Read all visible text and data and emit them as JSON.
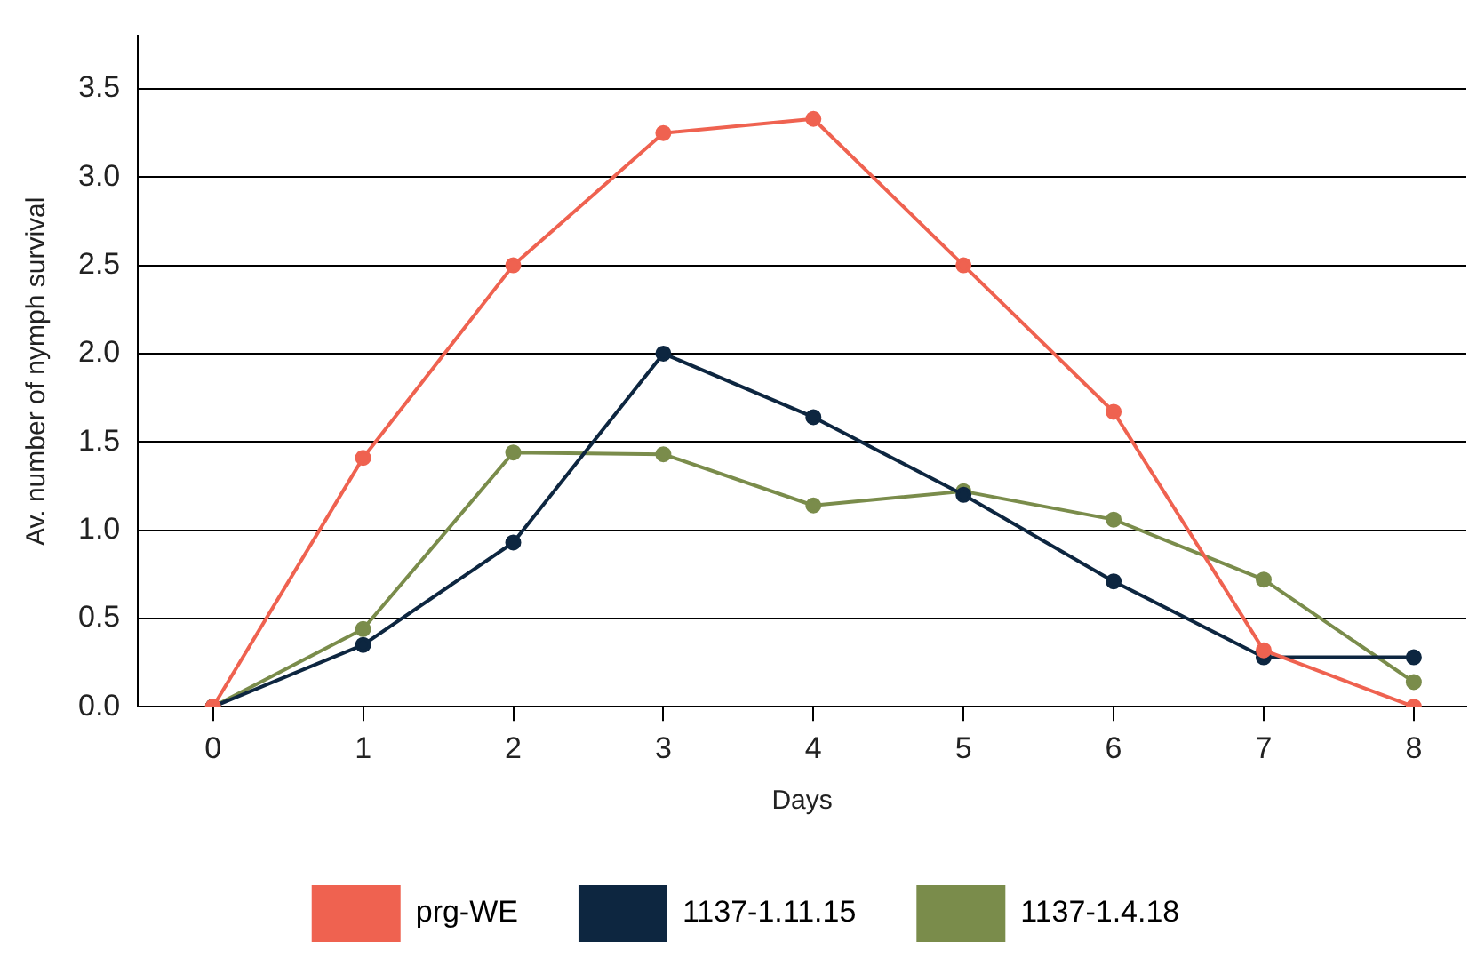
{
  "chart_data": {
    "type": "line",
    "xlabel": "Days",
    "ylabel": "Av. number of nymph survival",
    "x": [
      0,
      1,
      2,
      3,
      4,
      5,
      6,
      7,
      8
    ],
    "xlim": [
      -0.5,
      8.35
    ],
    "xticks": [
      0,
      1,
      2,
      3,
      4,
      5,
      6,
      7,
      8
    ],
    "ylim": [
      0,
      3.8
    ],
    "yticks": [
      {
        "value": 0,
        "label": "0.0"
      },
      0.5,
      {
        "value": 1,
        "label": "1.0"
      },
      1.5,
      {
        "value": 2,
        "label": "2.0"
      },
      2.5,
      {
        "value": 3,
        "label": "3.0"
      },
      3.5
    ],
    "grid": "y",
    "legend": "bottom",
    "marker": "circle",
    "line_style": "solid",
    "series": [
      {
        "name": "prg-WE",
        "color": "#ef6250",
        "values": [
          0,
          1.41,
          2.5,
          3.25,
          3.33,
          2.5,
          1.67,
          0.32,
          0
        ]
      },
      {
        "name": "1137-1.11.15",
        "color": "#0d2640",
        "values": [
          0,
          0.35,
          0.93,
          2,
          1.64,
          1.2,
          0.71,
          0.28,
          0.28
        ]
      },
      {
        "name": "1137-1.4.18",
        "color": "#7a8c4b",
        "values": [
          0,
          0.44,
          1.44,
          1.43,
          1.14,
          1.22,
          1.06,
          0.72,
          0.14
        ]
      }
    ]
  }
}
